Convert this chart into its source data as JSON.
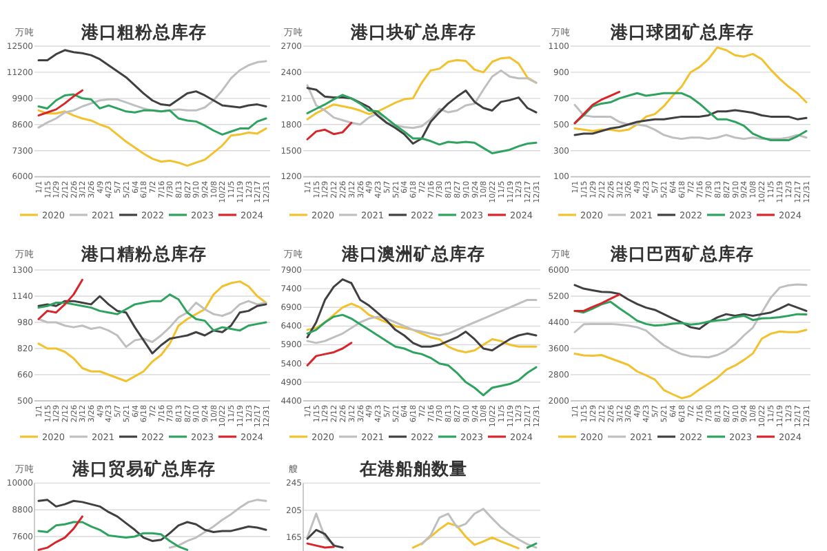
{
  "chart_data": [
    {
      "type": "line",
      "title": "港口粗粉总库存",
      "ylabel": "万吨",
      "categories": [
        "1/1",
        "1/15",
        "1/29",
        "2/12",
        "2/26",
        "3/12",
        "3/26",
        "4/9",
        "4/23",
        "5/7",
        "5/21",
        "6/4",
        "6/18",
        "7/2",
        "7/16",
        "7/30",
        "8/13",
        "8/27",
        "9/10",
        "9/24",
        "10/8",
        "10/22",
        "11/5",
        "11/19",
        "12/3",
        "12/17",
        "12/31"
      ],
      "ylim": [
        6000,
        12500
      ],
      "yticks": [
        6000,
        7300,
        8600,
        9900,
        11200,
        12500
      ],
      "grid": "y",
      "legend": "bottom",
      "series": [
        {
          "name": "2020",
          "color": "#f2c12e",
          "values": [
            9300,
            9150,
            9150,
            9250,
            9050,
            8900,
            8800,
            8600,
            8450,
            8100,
            7750,
            7450,
            7150,
            6900,
            6750,
            6800,
            6700,
            6550,
            6700,
            6850,
            7200,
            7550,
            8050,
            8100,
            8200,
            8150,
            8400
          ]
        },
        {
          "name": "2021",
          "color": "#bfbfbf",
          "values": [
            8450,
            8700,
            8900,
            9200,
            9300,
            9500,
            9650,
            9800,
            9850,
            9850,
            9700,
            9550,
            9400,
            9300,
            9250,
            9300,
            9350,
            9300,
            9300,
            9450,
            9800,
            10300,
            10900,
            11300,
            11550,
            11700,
            11750
          ]
        },
        {
          "name": "2022",
          "color": "#404040",
          "values": [
            11800,
            11800,
            12100,
            12300,
            12200,
            12150,
            12050,
            11850,
            11550,
            11250,
            10950,
            10550,
            10150,
            9800,
            9600,
            9550,
            9850,
            10150,
            10250,
            10050,
            9800,
            9550,
            9500,
            9450,
            9550,
            9600,
            9500
          ]
        },
        {
          "name": "2023",
          "color": "#2ea35f",
          "values": [
            9500,
            9400,
            9800,
            10050,
            10100,
            9900,
            9850,
            9400,
            9550,
            9400,
            9250,
            9200,
            9300,
            9300,
            9250,
            9300,
            8900,
            8800,
            8750,
            8550,
            8300,
            8100,
            8250,
            8400,
            8400,
            8750,
            8900
          ]
        },
        {
          "name": "2024",
          "color": "#d7262b",
          "values": [
            9050,
            9200,
            9350,
            9650,
            10000,
            10300,
            null,
            null,
            null,
            null,
            null,
            null,
            null,
            null,
            null,
            null,
            null,
            null,
            null,
            null,
            null,
            null,
            null,
            null,
            null,
            null,
            null
          ]
        }
      ]
    },
    {
      "type": "line",
      "title": "港口块矿总库存",
      "ylabel": "万吨",
      "categories": [
        "1/1",
        "1/15",
        "1/29",
        "2/12",
        "2/26",
        "3/12",
        "3/26",
        "4/9",
        "4/23",
        "5/7",
        "5/21",
        "6/4",
        "6/18",
        "7/2",
        "7/16",
        "7/30",
        "8/13",
        "8/27",
        "9/10",
        "9/24",
        "10/8",
        "10/22",
        "11/5",
        "11/19",
        "12/3",
        "12/17",
        "12/31"
      ],
      "ylim": [
        1200,
        2700
      ],
      "yticks": [
        1200,
        1500,
        1800,
        2100,
        2400,
        2700
      ],
      "grid": "y",
      "legend": "bottom",
      "series": [
        {
          "name": "2020",
          "color": "#f2c12e",
          "values": [
            1860,
            1930,
            1980,
            2030,
            2010,
            1990,
            1960,
            1920,
            1950,
            2000,
            2050,
            2090,
            2100,
            2280,
            2420,
            2440,
            2520,
            2540,
            2530,
            2430,
            2400,
            2520,
            2560,
            2570,
            2500,
            2340,
            2280
          ]
        },
        {
          "name": "2021",
          "color": "#bfbfbf",
          "values": [
            2250,
            2020,
            1960,
            1880,
            1850,
            1820,
            1800,
            1880,
            1930,
            1820,
            1790,
            1770,
            1760,
            1780,
            1860,
            1980,
            1940,
            1960,
            2020,
            2040,
            2200,
            2350,
            2420,
            2350,
            2330,
            2330,
            2280
          ]
        },
        {
          "name": "2022",
          "color": "#404040",
          "values": [
            2220,
            2200,
            2120,
            2110,
            2110,
            2100,
            2050,
            2000,
            1900,
            1820,
            1760,
            1690,
            1580,
            1640,
            1830,
            1940,
            2040,
            2120,
            2190,
            2060,
            1990,
            1960,
            2060,
            2080,
            2110,
            1990,
            1940
          ]
        },
        {
          "name": "2023",
          "color": "#2ea35f",
          "values": [
            1930,
            1980,
            2030,
            2090,
            2140,
            2100,
            2040,
            1960,
            1950,
            1870,
            1790,
            1720,
            1640,
            1640,
            1610,
            1570,
            1600,
            1590,
            1600,
            1590,
            1530,
            1470,
            1490,
            1510,
            1550,
            1580,
            1590
          ]
        },
        {
          "name": "2024",
          "color": "#d7262b",
          "values": [
            1630,
            1720,
            1740,
            1690,
            1710,
            1820,
            null,
            null,
            null,
            null,
            null,
            null,
            null,
            null,
            null,
            null,
            null,
            null,
            null,
            null,
            null,
            null,
            null,
            null,
            null,
            null,
            null
          ]
        }
      ]
    },
    {
      "type": "line",
      "title": "港口球团矿总库存",
      "ylabel": "万吨",
      "categories": [
        "1/1",
        "1/15",
        "1/29",
        "2/12",
        "2/26",
        "3/12",
        "3/26",
        "4/9",
        "4/23",
        "5/7",
        "5/21",
        "6/4",
        "6/18",
        "7/2",
        "7/16",
        "7/30",
        "8/13",
        "8/27",
        "9/10",
        "9/24",
        "10/8",
        "10/22",
        "11/5",
        "11/19",
        "12/3",
        "12/17",
        "12/31"
      ],
      "ylim": [
        100,
        1100
      ],
      "yticks": [
        100,
        300,
        500,
        700,
        900,
        1100
      ],
      "grid": "y",
      "legend": "bottom",
      "series": [
        {
          "name": "2020",
          "color": "#f2c12e",
          "values": [
            470,
            460,
            450,
            460,
            460,
            450,
            460,
            500,
            560,
            580,
            640,
            720,
            790,
            900,
            940,
            1000,
            1090,
            1070,
            1030,
            1020,
            1040,
            1000,
            920,
            850,
            790,
            740,
            670
          ]
        },
        {
          "name": "2021",
          "color": "#bfbfbf",
          "values": [
            650,
            570,
            560,
            560,
            560,
            520,
            500,
            500,
            490,
            460,
            420,
            400,
            390,
            400,
            400,
            390,
            400,
            420,
            400,
            390,
            400,
            390,
            390,
            390,
            400,
            420,
            400
          ]
        },
        {
          "name": "2022",
          "color": "#404040",
          "values": [
            420,
            430,
            430,
            450,
            470,
            480,
            500,
            520,
            530,
            540,
            540,
            550,
            560,
            560,
            560,
            570,
            600,
            600,
            610,
            600,
            590,
            570,
            560,
            560,
            560,
            540,
            550
          ]
        },
        {
          "name": "2023",
          "color": "#2ea35f",
          "values": [
            510,
            570,
            640,
            660,
            670,
            700,
            720,
            740,
            720,
            730,
            740,
            740,
            740,
            710,
            660,
            600,
            540,
            540,
            520,
            490,
            430,
            400,
            380,
            380,
            380,
            410,
            450
          ]
        },
        {
          "name": "2024",
          "color": "#d7262b",
          "values": [
            510,
            580,
            650,
            690,
            720,
            750,
            null,
            null,
            null,
            null,
            null,
            null,
            null,
            null,
            null,
            null,
            null,
            null,
            null,
            null,
            null,
            null,
            null,
            null,
            null,
            null,
            null
          ]
        }
      ]
    },
    {
      "type": "line",
      "title": "港口精粉总库存",
      "ylabel": "万吨",
      "categories": [
        "1/1",
        "1/15",
        "1/29",
        "2/12",
        "2/26",
        "3/12",
        "3/26",
        "4/9",
        "4/23",
        "5/7",
        "5/21",
        "6/4",
        "6/18",
        "7/2",
        "7/16",
        "7/30",
        "8/13",
        "8/27",
        "9/10",
        "9/24",
        "10/8",
        "10/22",
        "11/5",
        "11/19",
        "12/3",
        "12/17",
        "12/31"
      ],
      "ylim": [
        500,
        1300
      ],
      "yticks": [
        500,
        660,
        820,
        980,
        1140,
        1300
      ],
      "grid": "y",
      "legend": "bottom",
      "series": [
        {
          "name": "2020",
          "color": "#f2c12e",
          "values": [
            850,
            820,
            820,
            800,
            760,
            700,
            680,
            680,
            660,
            640,
            620,
            650,
            680,
            740,
            780,
            850,
            960,
            1000,
            1030,
            1060,
            1150,
            1200,
            1220,
            1230,
            1200,
            1140,
            1100
          ]
        },
        {
          "name": "2021",
          "color": "#bfbfbf",
          "values": [
            1000,
            980,
            980,
            960,
            950,
            960,
            940,
            950,
            930,
            900,
            830,
            870,
            880,
            860,
            900,
            950,
            1010,
            1040,
            1100,
            1060,
            1030,
            1020,
            1040,
            1090,
            1110,
            1090,
            1100
          ]
        },
        {
          "name": "2022",
          "color": "#404040",
          "values": [
            1080,
            1090,
            1080,
            1110,
            1110,
            1100,
            1090,
            1140,
            1090,
            1050,
            1040,
            950,
            870,
            790,
            840,
            880,
            890,
            900,
            920,
            900,
            930,
            920,
            960,
            1040,
            1050,
            1080,
            1090
          ]
        },
        {
          "name": "2023",
          "color": "#2ea35f",
          "values": [
            1070,
            1080,
            1100,
            1100,
            1090,
            1080,
            1070,
            1050,
            1040,
            1030,
            1060,
            1090,
            1100,
            1110,
            1110,
            1150,
            1120,
            1040,
            1000,
            990,
            930,
            950,
            940,
            930,
            960,
            970,
            980
          ]
        },
        {
          "name": "2024",
          "color": "#d7262b",
          "values": [
            1000,
            1050,
            1040,
            1090,
            1150,
            1240,
            null,
            null,
            null,
            null,
            null,
            null,
            null,
            null,
            null,
            null,
            null,
            null,
            null,
            null,
            null,
            null,
            null,
            null,
            null,
            null,
            null
          ]
        }
      ]
    },
    {
      "type": "line",
      "title": "港口澳洲矿总库存",
      "ylabel": "万吨",
      "categories": [
        "1/1",
        "1/15",
        "1/29",
        "2/12",
        "2/26",
        "3/12",
        "3/26",
        "4/9",
        "4/23",
        "5/7",
        "5/21",
        "6/4",
        "6/18",
        "7/2",
        "7/16",
        "7/30",
        "8/13",
        "8/27",
        "9/10",
        "9/24",
        "10/8",
        "10/22",
        "11/5",
        "11/19",
        "12/3",
        "12/17",
        "12/31"
      ],
      "ylim": [
        4400,
        7900
      ],
      "yticks": [
        4400,
        4900,
        5400,
        5900,
        6400,
        6900,
        7400,
        7900
      ],
      "grid": "y",
      "legend": "bottom",
      "series": [
        {
          "name": "2020",
          "color": "#f2c12e",
          "values": [
            6300,
            6350,
            6500,
            6700,
            6900,
            7000,
            6900,
            6700,
            6600,
            6500,
            6400,
            6350,
            6300,
            6200,
            6100,
            6050,
            5850,
            5750,
            5700,
            5750,
            5900,
            6050,
            6000,
            5900,
            5850,
            5850,
            5850
          ]
        },
        {
          "name": "2021",
          "color": "#bfbfbf",
          "values": [
            6000,
            5950,
            6000,
            6100,
            6200,
            6350,
            6500,
            6600,
            6650,
            6600,
            6500,
            6400,
            6300,
            6250,
            6200,
            6150,
            6200,
            6300,
            6400,
            6500,
            6600,
            6700,
            6800,
            6900,
            7000,
            7100,
            7100
          ]
        },
        {
          "name": "2022",
          "color": "#404040",
          "values": [
            6100,
            6500,
            7100,
            7450,
            7650,
            7550,
            7100,
            6950,
            6750,
            6550,
            6300,
            6150,
            5950,
            5850,
            5850,
            5900,
            6000,
            6100,
            6250,
            6050,
            5800,
            5750,
            5900,
            6050,
            6150,
            6200,
            6150
          ]
        },
        {
          "name": "2023",
          "color": "#2ea35f",
          "values": [
            6200,
            6300,
            6500,
            6650,
            6700,
            6600,
            6450,
            6300,
            6150,
            6000,
            5850,
            5800,
            5700,
            5650,
            5550,
            5400,
            5350,
            5150,
            4900,
            4750,
            4550,
            4750,
            4800,
            4850,
            4950,
            5150,
            5300
          ]
        },
        {
          "name": "2024",
          "color": "#d7262b",
          "values": [
            5350,
            5600,
            5650,
            5700,
            5800,
            5950,
            null,
            null,
            null,
            null,
            null,
            null,
            null,
            null,
            null,
            null,
            null,
            null,
            null,
            null,
            null,
            null,
            null,
            null,
            null,
            null,
            null
          ]
        }
      ]
    },
    {
      "type": "line",
      "title": "港口巴西矿总库存",
      "ylabel": "万吨",
      "categories": [
        "1/1",
        "1/15",
        "1/29",
        "2/12",
        "2/26",
        "3/12",
        "3/26",
        "4/9",
        "4/23",
        "5/7",
        "5/21",
        "6/4",
        "6/18",
        "7/2",
        "7/16",
        "7/30",
        "8/13",
        "8/27",
        "9/10",
        "9/24",
        "10/8",
        "10/22",
        "11/5",
        "11/19",
        "12/3",
        "12/17",
        "12/31"
      ],
      "ylim": [
        2000,
        6000
      ],
      "yticks": [
        2000,
        2800,
        3600,
        4400,
        5200,
        6000
      ],
      "grid": "y",
      "legend": "bottom",
      "series": [
        {
          "name": "2020",
          "color": "#f2c12e",
          "values": [
            3440,
            3390,
            3380,
            3400,
            3300,
            3200,
            3100,
            2900,
            2780,
            2650,
            2330,
            2200,
            2080,
            2150,
            2350,
            2520,
            2700,
            2950,
            3080,
            3250,
            3450,
            3900,
            4050,
            4120,
            4100,
            4100,
            4170
          ]
        },
        {
          "name": "2021",
          "color": "#bfbfbf",
          "values": [
            4100,
            4340,
            4350,
            4350,
            4350,
            4330,
            4300,
            4250,
            4150,
            3920,
            3700,
            3550,
            3430,
            3360,
            3350,
            3330,
            3400,
            3530,
            3730,
            4000,
            4240,
            4700,
            5150,
            5460,
            5530,
            5560,
            5540
          ]
        },
        {
          "name": "2022",
          "color": "#404040",
          "values": [
            5540,
            5430,
            5380,
            5330,
            5320,
            5270,
            5100,
            4960,
            4850,
            4780,
            4650,
            4520,
            4400,
            4250,
            4200,
            4400,
            4550,
            4650,
            4600,
            4650,
            4600,
            4650,
            4700,
            4820,
            4950,
            4850,
            4750
          ]
        },
        {
          "name": "2023",
          "color": "#2ea35f",
          "values": [
            4750,
            4700,
            4820,
            4950,
            5030,
            4830,
            4650,
            4450,
            4350,
            4300,
            4320,
            4360,
            4380,
            4330,
            4360,
            4420,
            4460,
            4480,
            4560,
            4600,
            4470,
            4520,
            4530,
            4560,
            4600,
            4650,
            4640
          ]
        },
        {
          "name": "2024",
          "color": "#d7262b",
          "values": [
            4750,
            4750,
            4870,
            4980,
            5120,
            5250,
            null,
            null,
            null,
            null,
            null,
            null,
            null,
            null,
            null,
            null,
            null,
            null,
            null,
            null,
            null,
            null,
            null,
            null,
            null,
            null,
            null
          ]
        }
      ]
    },
    {
      "type": "line",
      "title": "港口贸易矿总库存",
      "ylabel": "万吨",
      "categories": [
        null,
        null,
        null,
        null,
        null,
        null,
        null,
        null,
        null,
        null,
        null,
        null,
        null,
        null,
        null,
        null,
        null,
        null,
        null,
        null,
        null,
        null,
        null,
        null,
        null,
        null,
        null
      ],
      "ylim": [
        6950,
        10000
      ],
      "yticks": [
        7600,
        8800,
        10000
      ],
      "grid": "y",
      "tick_labels": "y",
      "series": [
        {
          "color": "#bfbfbf",
          "values": [
            null,
            null,
            null,
            null,
            null,
            null,
            null,
            null,
            null,
            null,
            null,
            null,
            null,
            null,
            null,
            7100,
            7200,
            7400,
            7550,
            7800,
            8050,
            8350,
            8600,
            8900,
            9150,
            9250,
            9200
          ]
        },
        {
          "color": "#404040",
          "values": [
            9200,
            9250,
            8950,
            9050,
            9200,
            9150,
            9050,
            8950,
            8700,
            8500,
            8200,
            7900,
            7550,
            7400,
            7450,
            7750,
            8100,
            8250,
            8150,
            7900,
            7800,
            7850,
            7850,
            7950,
            8050,
            8000,
            7900
          ]
        },
        {
          "color": "#2ea35f",
          "values": [
            7850,
            7800,
            8100,
            8150,
            8250,
            8250,
            8050,
            7900,
            7650,
            7600,
            7550,
            7600,
            7750,
            7750,
            7700,
            7400,
            7150,
            7000,
            null,
            null,
            null,
            null,
            null,
            null,
            null,
            null,
            null
          ]
        },
        {
          "color": "#d7262b",
          "values": [
            7000,
            7100,
            7350,
            7550,
            7950,
            8500,
            null,
            null,
            null,
            null,
            null,
            null,
            null,
            null,
            null,
            null,
            null,
            null,
            null,
            null,
            null,
            null,
            null,
            null,
            null,
            null,
            null
          ]
        }
      ]
    },
    {
      "type": "line",
      "title": "在港船舶数量",
      "ylabel": "艘",
      "categories": [
        null,
        null,
        null,
        null,
        null,
        null,
        null,
        null,
        null,
        null,
        null,
        null,
        null,
        null,
        null,
        null,
        null,
        null,
        null,
        null,
        null,
        null,
        null,
        null,
        null,
        null,
        null
      ],
      "ylim": [
        145,
        245
      ],
      "yticks": [
        165,
        205,
        245
      ],
      "grid": "y",
      "tick_labels": "y",
      "series": [
        {
          "color": "#f2c12e",
          "values": [
            null,
            null,
            null,
            null,
            null,
            null,
            null,
            null,
            null,
            null,
            null,
            null,
            150,
            156,
            166,
            177,
            186,
            182,
            166,
            154,
            159,
            165,
            159,
            154,
            149,
            null,
            null
          ]
        },
        {
          "color": "#bfbfbf",
          "values": [
            165,
            200,
            165,
            155,
            null,
            null,
            null,
            null,
            null,
            null,
            null,
            null,
            null,
            155,
            168,
            194,
            200,
            180,
            185,
            200,
            207,
            193,
            180,
            170,
            162,
            155,
            150
          ]
        },
        {
          "color": "#404040",
          "values": [
            163,
            176,
            170,
            153,
            150,
            null,
            null,
            null,
            null,
            null,
            null,
            null,
            null,
            null,
            null,
            null,
            null,
            null,
            null,
            null,
            null,
            null,
            null,
            null,
            null,
            null,
            null
          ]
        },
        {
          "color": "#2ea35f",
          "values": [
            null,
            null,
            null,
            null,
            null,
            null,
            null,
            null,
            null,
            null,
            null,
            null,
            null,
            null,
            null,
            null,
            null,
            null,
            null,
            null,
            null,
            null,
            null,
            null,
            null,
            150,
            156
          ]
        },
        {
          "color": "#d7262b",
          "values": [
            156,
            153,
            150,
            151,
            null,
            null,
            null,
            null,
            null,
            null,
            null,
            null,
            null,
            null,
            null,
            null,
            null,
            null,
            null,
            null,
            null,
            null,
            null,
            null,
            null,
            null,
            null
          ]
        }
      ]
    }
  ]
}
